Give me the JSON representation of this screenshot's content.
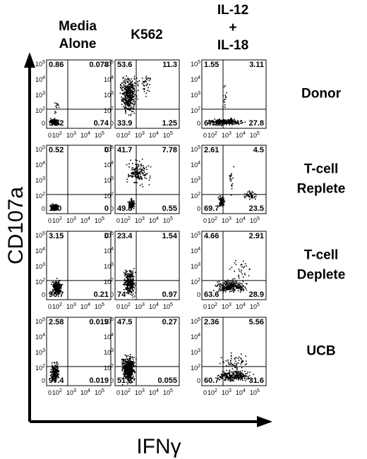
{
  "column_headers": [
    [
      "Media",
      "Alone"
    ],
    [
      "K562"
    ],
    [
      "IL-12",
      "+",
      "IL-18"
    ]
  ],
  "rows": [
    {
      "label": [
        "Donor"
      ],
      "panels": [
        {
          "quadrants": {
            "upper_left": 0.86,
            "upper_right": 0.078,
            "lower_left": 98.2,
            "lower_right": 0.74
          }
        },
        {
          "quadrants": {
            "upper_left": 53.6,
            "upper_right": 11.3,
            "lower_left": 33.9,
            "lower_right": 1.25
          }
        },
        {
          "quadrants": {
            "upper_left": 1.55,
            "upper_right": 3.11,
            "lower_left": 67.2,
            "lower_right": 27.8
          }
        }
      ]
    },
    {
      "label": [
        "T-cell",
        "Replete"
      ],
      "panels": [
        {
          "quadrants": {
            "upper_left": 0.52,
            "upper_right": 0,
            "lower_left": 100,
            "lower_right": 0
          }
        },
        {
          "quadrants": {
            "upper_left": 41.7,
            "upper_right": 7.78,
            "lower_left": 49.8,
            "lower_right": 0.55
          }
        },
        {
          "quadrants": {
            "upper_left": 2.61,
            "upper_right": 4.5,
            "lower_left": 69.7,
            "lower_right": 23.5
          }
        }
      ]
    },
    {
      "label": [
        "T-cell",
        "Deplete"
      ],
      "panels": [
        {
          "quadrants": {
            "upper_left": 3.15,
            "upper_right": 0,
            "lower_left": 96.7,
            "lower_right": 0.21
          }
        },
        {
          "quadrants": {
            "upper_left": 23.4,
            "upper_right": 1.54,
            "lower_left": 74,
            "lower_right": 0.97
          }
        },
        {
          "quadrants": {
            "upper_left": 4.66,
            "upper_right": 2.91,
            "lower_left": 63.6,
            "lower_right": 28.9
          }
        }
      ]
    },
    {
      "label": [
        "UCB"
      ],
      "panels": [
        {
          "quadrants": {
            "upper_left": 2.58,
            "upper_right": 0.019,
            "lower_left": 97.4,
            "lower_right": 0.019
          }
        },
        {
          "quadrants": {
            "upper_left": 47.5,
            "upper_right": 0.27,
            "lower_left": 51.8,
            "lower_right": 0.055
          }
        },
        {
          "quadrants": {
            "upper_left": 2.36,
            "upper_right": 5.56,
            "lower_left": 60.7,
            "lower_right": 31.6
          }
        }
      ]
    }
  ],
  "axis_ticks": {
    "zero": "0",
    "base": "10",
    "exponents": [
      "2",
      "3",
      "4",
      "5"
    ]
  },
  "y_axis_label": "CD107a",
  "x_axis_label": "IFNγ"
}
